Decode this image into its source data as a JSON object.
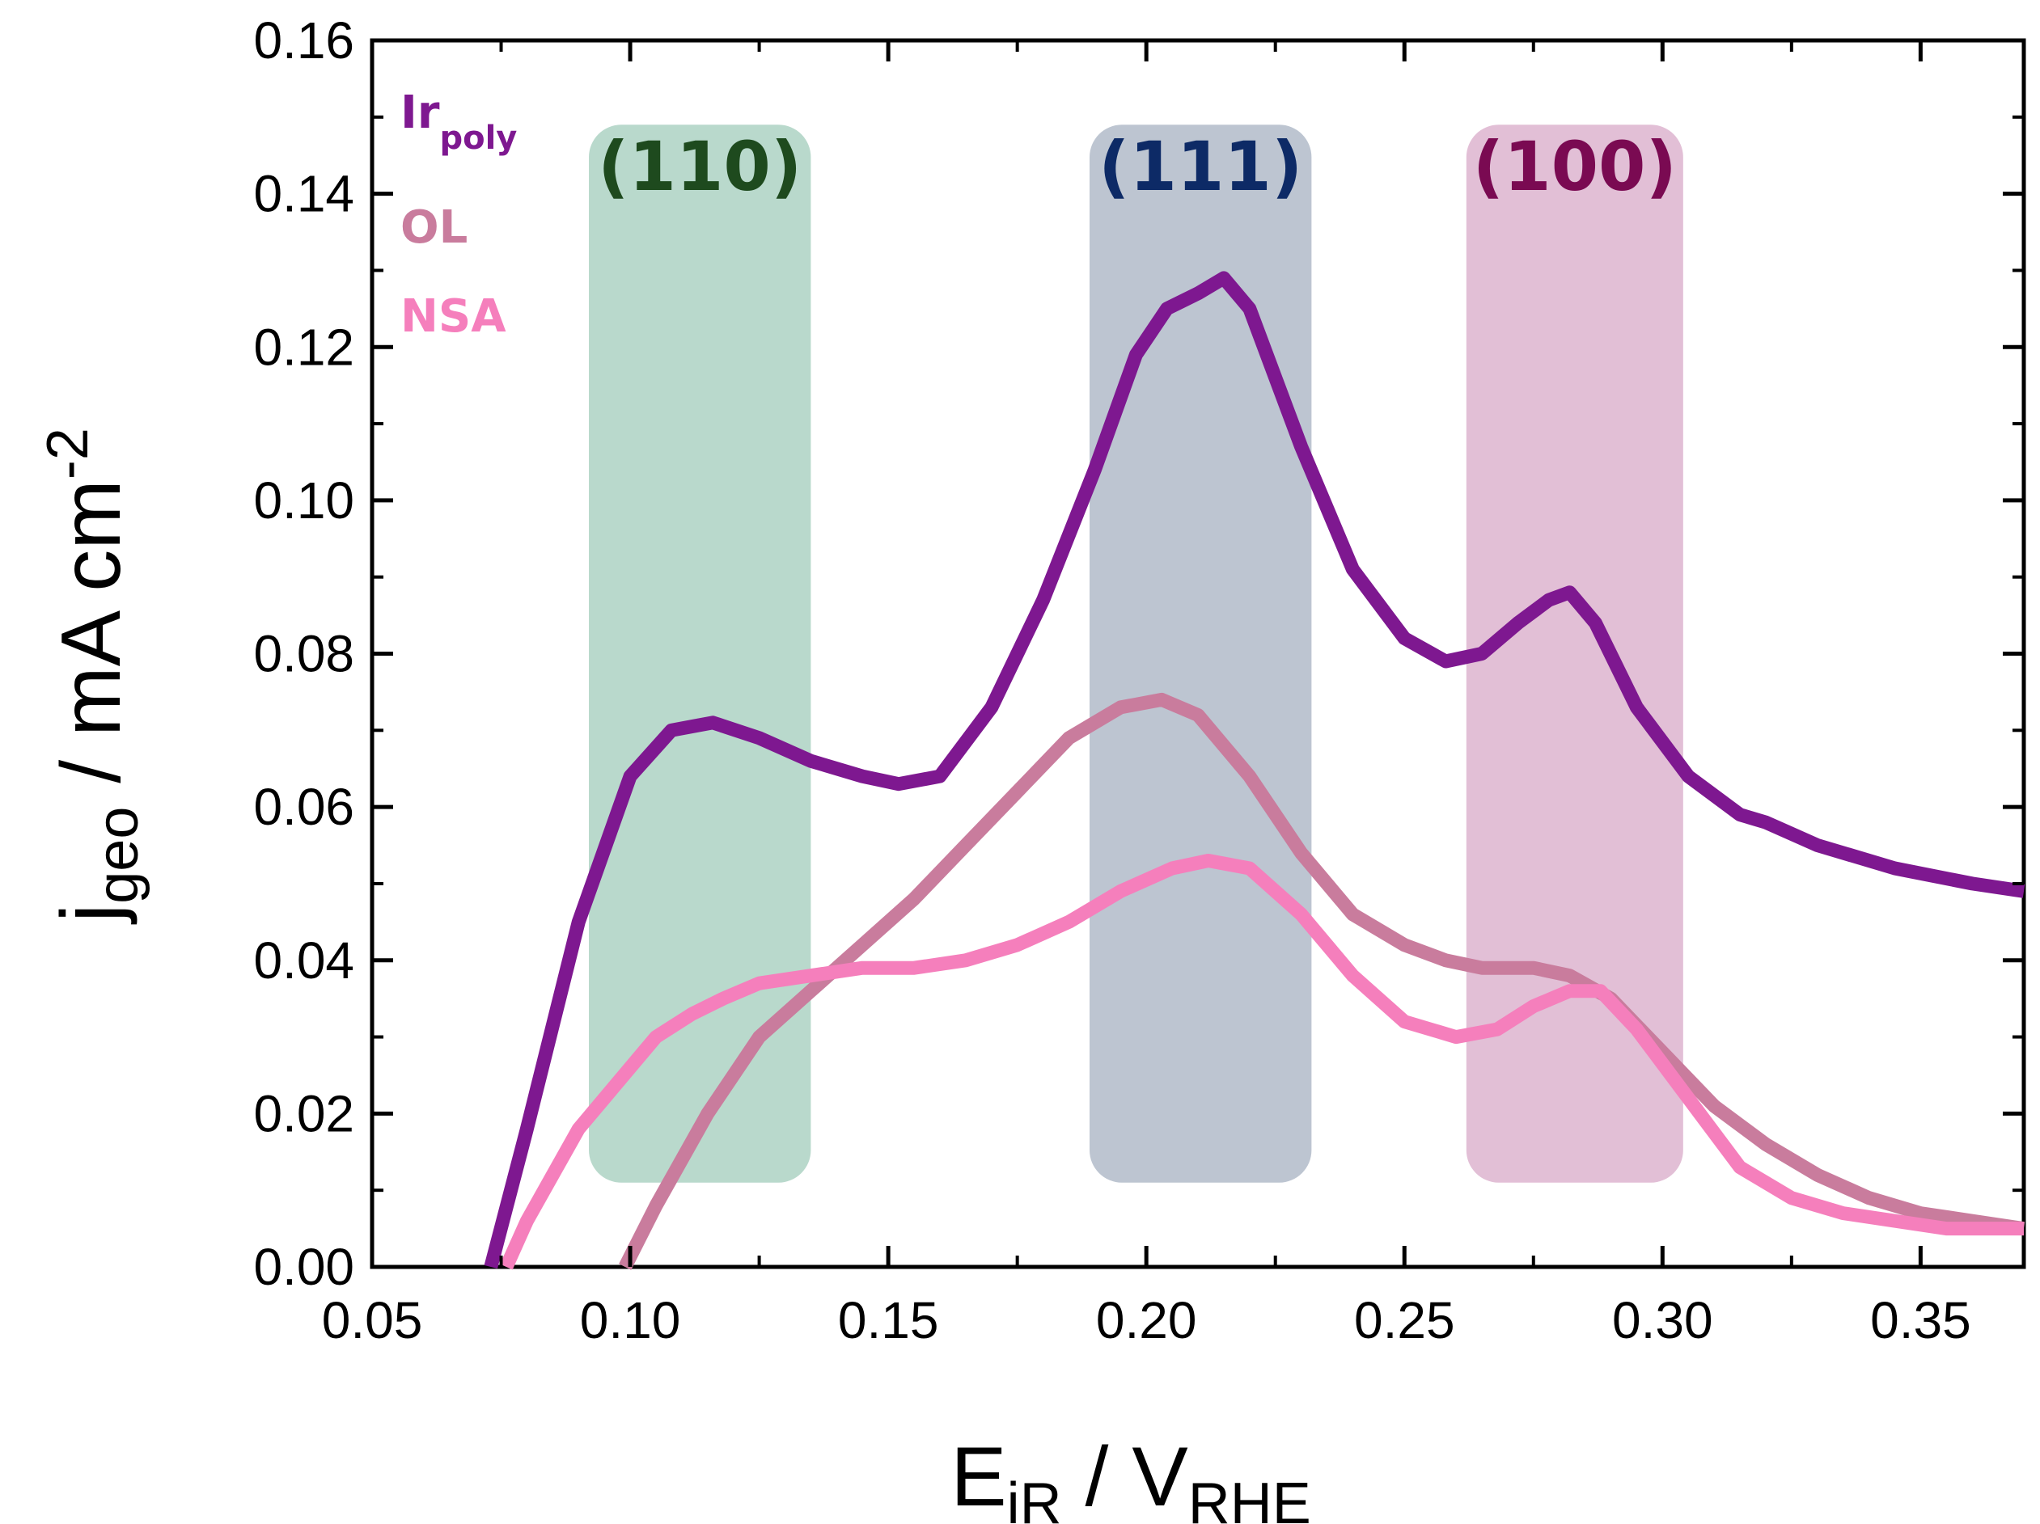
{
  "chart_data": {
    "type": "line",
    "title": "",
    "xlabel": {
      "main": "E",
      "sub": "iR",
      "sep": " / V",
      "sub2": "RHE"
    },
    "ylabel": {
      "main": "j",
      "sub": "geo",
      "rest": " / mA cm",
      "sup": "-2"
    },
    "xlim": [
      0.05,
      0.37
    ],
    "ylim": [
      0,
      0.16
    ],
    "xticks": [
      "0.05",
      "0.10",
      "0.15",
      "0.20",
      "0.25",
      "0.30",
      "0.35"
    ],
    "yticks": [
      "0.00",
      "0.02",
      "0.04",
      "0.06",
      "0.08",
      "0.10",
      "0.12",
      "0.14",
      "0.16"
    ],
    "bands": [
      {
        "label": "(110)",
        "x": [
          0.092,
          0.135
        ],
        "y": [
          0.011,
          0.149
        ],
        "fill": "#9ecbb8",
        "text": "#1e4a1e"
      },
      {
        "label": "(111)",
        "x": [
          0.189,
          0.232
        ],
        "y": [
          0.011,
          0.149
        ],
        "fill": "#a3afbf",
        "text": "#0d2a66"
      },
      {
        "label": "(100)",
        "x": [
          0.262,
          0.304
        ],
        "y": [
          0.011,
          0.149
        ],
        "fill": "#d7a6c6",
        "text": "#7a0a52"
      }
    ],
    "series": [
      {
        "name": "Ir",
        "sub": "poly",
        "color": "#7e1890",
        "x": [
          0.073,
          0.08,
          0.09,
          0.1,
          0.108,
          0.116,
          0.125,
          0.135,
          0.145,
          0.152,
          0.16,
          0.17,
          0.18,
          0.19,
          0.198,
          0.204,
          0.21,
          0.215,
          0.22,
          0.23,
          0.24,
          0.25,
          0.258,
          0.265,
          0.272,
          0.278,
          0.282,
          0.287,
          0.295,
          0.305,
          0.315,
          0.32,
          0.33,
          0.345,
          0.36,
          0.37
        ],
        "values": [
          0.0,
          0.018,
          0.045,
          0.064,
          0.07,
          0.071,
          0.069,
          0.066,
          0.064,
          0.063,
          0.064,
          0.073,
          0.087,
          0.104,
          0.119,
          0.125,
          0.127,
          0.129,
          0.125,
          0.107,
          0.091,
          0.082,
          0.079,
          0.08,
          0.084,
          0.087,
          0.088,
          0.084,
          0.073,
          0.064,
          0.059,
          0.058,
          0.055,
          0.052,
          0.05,
          0.049
        ]
      },
      {
        "name": "OL",
        "sub": "",
        "color": "#c97c9d",
        "x": [
          0.099,
          0.105,
          0.115,
          0.125,
          0.135,
          0.145,
          0.155,
          0.165,
          0.175,
          0.185,
          0.195,
          0.203,
          0.21,
          0.22,
          0.23,
          0.24,
          0.25,
          0.258,
          0.265,
          0.275,
          0.282,
          0.29,
          0.3,
          0.31,
          0.32,
          0.33,
          0.34,
          0.35,
          0.36,
          0.37
        ],
        "values": [
          0.0,
          0.008,
          0.02,
          0.03,
          0.036,
          0.042,
          0.048,
          0.055,
          0.062,
          0.069,
          0.073,
          0.074,
          0.072,
          0.064,
          0.054,
          0.046,
          0.042,
          0.04,
          0.039,
          0.039,
          0.038,
          0.035,
          0.028,
          0.021,
          0.016,
          0.012,
          0.009,
          0.007,
          0.006,
          0.005
        ]
      },
      {
        "name": "NSA",
        "sub": "",
        "color": "#f57fbc",
        "x": [
          0.076,
          0.08,
          0.09,
          0.1,
          0.105,
          0.112,
          0.118,
          0.125,
          0.135,
          0.145,
          0.155,
          0.165,
          0.175,
          0.185,
          0.195,
          0.205,
          0.212,
          0.22,
          0.23,
          0.24,
          0.25,
          0.26,
          0.268,
          0.275,
          0.282,
          0.288,
          0.295,
          0.305,
          0.315,
          0.325,
          0.335,
          0.345,
          0.355,
          0.37
        ],
        "values": [
          0.0,
          0.006,
          0.018,
          0.026,
          0.03,
          0.033,
          0.035,
          0.037,
          0.038,
          0.039,
          0.039,
          0.04,
          0.042,
          0.045,
          0.049,
          0.052,
          0.053,
          0.052,
          0.046,
          0.038,
          0.032,
          0.03,
          0.031,
          0.034,
          0.036,
          0.036,
          0.031,
          0.022,
          0.013,
          0.009,
          0.007,
          0.006,
          0.005,
          0.005
        ]
      }
    ]
  }
}
